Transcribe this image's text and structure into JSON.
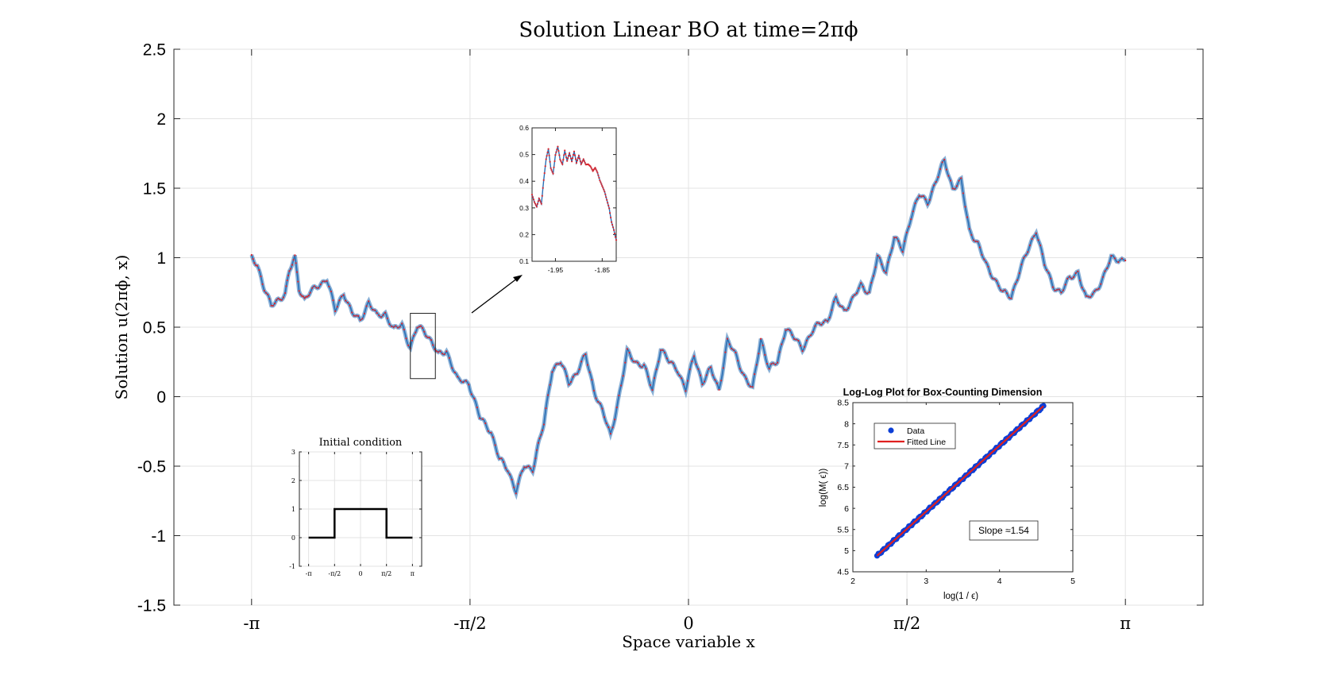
{
  "chart_data": [
    {
      "id": "main",
      "type": "line",
      "title": "Solution Linear BO at time=2πϕ",
      "xlabel": "Space variable x",
      "ylabel": "Solution u(2πϕ, x)",
      "xlim": [
        -3.7,
        3.7
      ],
      "ylim": [
        -1.5,
        2.5
      ],
      "xticks": [
        -3.14159,
        -1.5708,
        0,
        1.5708,
        3.14159
      ],
      "xtick_labels": [
        "-π",
        "-π/2",
        "0",
        "π/2",
        "π"
      ],
      "yticks": [
        -1.5,
        -1,
        -0.5,
        0,
        0.5,
        1,
        1.5,
        2,
        2.5
      ],
      "ytick_labels": [
        "-1.5",
        "-1",
        "-0.5",
        "0",
        "0.5",
        "1",
        "1.5",
        "2",
        "2.5"
      ],
      "grid": true,
      "line_color": "#2a6fb5",
      "marker_color": "#d9262e",
      "series_x": [
        -3.1416,
        -3.1,
        -3.05,
        -3.0,
        -2.95,
        -2.9,
        -2.87,
        -2.83,
        -2.8,
        -2.76,
        -2.72,
        -2.66,
        -2.6,
        -2.54,
        -2.48,
        -2.42,
        -2.36,
        -2.3,
        -2.24,
        -2.18,
        -2.12,
        -2.06,
        -2.0,
        -1.95,
        -1.9,
        -1.85,
        -1.8,
        -1.74,
        -1.66,
        -1.58,
        -1.5,
        -1.42,
        -1.36,
        -1.3,
        -1.24,
        -1.18,
        -1.12,
        -1.08,
        -1.04,
        -0.98,
        -0.92,
        -0.86,
        -0.8,
        -0.74,
        -0.68,
        -0.62,
        -0.56,
        -0.5,
        -0.44,
        -0.38,
        -0.32,
        -0.26,
        -0.2,
        -0.14,
        -0.08,
        -0.02,
        0.04,
        0.1,
        0.16,
        0.22,
        0.28,
        0.34,
        0.4,
        0.46,
        0.52,
        0.58,
        0.64,
        0.7,
        0.76,
        0.82,
        0.88,
        0.94,
        1.0,
        1.06,
        1.12,
        1.18,
        1.24,
        1.3,
        1.36,
        1.42,
        1.48,
        1.54,
        1.6,
        1.66,
        1.72,
        1.78,
        1.84,
        1.9,
        1.96,
        2.02,
        2.08,
        2.14,
        2.2,
        2.26,
        2.32,
        2.38,
        2.44,
        2.5,
        2.56,
        2.62,
        2.68,
        2.74,
        2.8,
        2.86,
        2.92,
        2.98,
        3.04,
        3.1416
      ],
      "series_y": [
        1.0,
        0.95,
        0.78,
        0.65,
        0.7,
        0.74,
        0.9,
        1.0,
        0.78,
        0.7,
        0.75,
        0.8,
        0.85,
        0.62,
        0.75,
        0.6,
        0.55,
        0.68,
        0.58,
        0.6,
        0.48,
        0.52,
        0.35,
        0.5,
        0.48,
        0.4,
        0.3,
        0.33,
        0.12,
        0.1,
        -0.15,
        -0.25,
        -0.45,
        -0.52,
        -0.68,
        -0.5,
        -0.52,
        -0.35,
        -0.2,
        0.2,
        0.25,
        0.1,
        0.18,
        0.3,
        0.05,
        -0.1,
        -0.28,
        0.0,
        0.32,
        0.25,
        0.22,
        0.05,
        0.35,
        0.25,
        0.2,
        0.05,
        0.3,
        0.1,
        0.2,
        0.05,
        0.4,
        0.3,
        0.15,
        0.05,
        0.42,
        0.2,
        0.25,
        0.5,
        0.42,
        0.35,
        0.45,
        0.53,
        0.55,
        0.7,
        0.62,
        0.7,
        0.8,
        0.75,
        1.0,
        0.9,
        1.15,
        1.05,
        1.3,
        1.45,
        1.4,
        1.55,
        1.7,
        1.5,
        1.55,
        1.2,
        1.1,
        0.95,
        0.85,
        0.75,
        0.72,
        0.9,
        1.05,
        1.2,
        0.95,
        0.8,
        0.75,
        0.85,
        0.9,
        0.7,
        0.75,
        0.85,
        1.0,
        0.98
      ]
    },
    {
      "id": "initial-condition",
      "type": "line",
      "title": "Initial condition",
      "xlim": [
        -3.7,
        3.7
      ],
      "ylim": [
        -1,
        3
      ],
      "xticks": [
        -3.14159,
        -1.5708,
        0,
        1.5708,
        3.14159
      ],
      "xtick_labels": [
        "-π",
        "-π/2",
        "0",
        "π/2",
        "π"
      ],
      "yticks": [
        -1,
        0,
        1,
        2,
        3
      ],
      "ytick_labels": [
        "-1",
        "0",
        "1",
        "2",
        "3"
      ],
      "grid": true,
      "series_x": [
        -3.14159,
        -1.5708,
        -1.5708,
        1.5708,
        1.5708,
        3.14159
      ],
      "series_y": [
        0,
        0,
        1,
        1,
        0,
        0
      ]
    },
    {
      "id": "zoom",
      "type": "line",
      "xlim": [
        -2.0,
        -1.82
      ],
      "ylim": [
        0.1,
        0.6
      ],
      "xticks": [
        -1.95,
        -1.85
      ],
      "xtick_labels": [
        "-1.95",
        "-1.85"
      ],
      "yticks": [
        0.1,
        0.2,
        0.3,
        0.4,
        0.5,
        0.6
      ],
      "ytick_labels": [
        "0.1",
        "0.2",
        "0.3",
        "0.4",
        "0.5",
        "0.6"
      ],
      "grid": false,
      "series_x": [
        -2.0,
        -1.995,
        -1.99,
        -1.985,
        -1.98,
        -1.975,
        -1.97,
        -1.965,
        -1.96,
        -1.955,
        -1.95,
        -1.945,
        -1.94,
        -1.935,
        -1.93,
        -1.925,
        -1.92,
        -1.915,
        -1.91,
        -1.905,
        -1.9,
        -1.895,
        -1.89,
        -1.885,
        -1.88,
        -1.875,
        -1.87,
        -1.865,
        -1.86,
        -1.855,
        -1.85,
        -1.845,
        -1.84,
        -1.835,
        -1.83,
        -1.825,
        -1.82
      ],
      "series_y": [
        0.35,
        0.32,
        0.3,
        0.33,
        0.31,
        0.4,
        0.48,
        0.52,
        0.45,
        0.43,
        0.5,
        0.53,
        0.48,
        0.46,
        0.51,
        0.47,
        0.5,
        0.47,
        0.51,
        0.47,
        0.5,
        0.47,
        0.49,
        0.47,
        0.47,
        0.46,
        0.44,
        0.45,
        0.43,
        0.4,
        0.38,
        0.36,
        0.33,
        0.3,
        0.25,
        0.22,
        0.18
      ]
    },
    {
      "id": "loglog",
      "type": "scatter",
      "title": "Log-Log Plot for Box-Counting Dimension",
      "xlabel": "log(1 / ϵ)",
      "ylabel": "log(M( ϵ))",
      "xlim": [
        2,
        5
      ],
      "ylim": [
        4.5,
        8.5
      ],
      "xticks": [
        2,
        3,
        4,
        5
      ],
      "xtick_labels": [
        "2",
        "3",
        "4",
        "5"
      ],
      "yticks": [
        4.5,
        5,
        5.5,
        6,
        6.5,
        7,
        7.5,
        8,
        8.5
      ],
      "ytick_labels": [
        "4.5",
        "5",
        "5.5",
        "6",
        "6.5",
        "7",
        "7.5",
        "8",
        "8.5"
      ],
      "grid": false,
      "data_x_range": [
        2.33,
        4.6
      ],
      "fit": {
        "x": [
          2.33,
          4.6
        ],
        "y": [
          4.88,
          8.42
        ]
      },
      "legend": [
        "Data",
        "Fitted Line"
      ],
      "annotation": "Slope  ≈1.54",
      "data_color": "#0d3fd6",
      "fit_color": "#e0201f"
    }
  ],
  "arrow_label": "zoom-arrow"
}
